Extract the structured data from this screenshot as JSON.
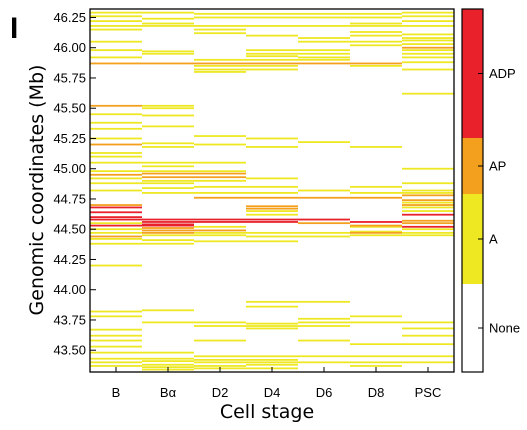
{
  "panel_label": "I",
  "chart_data": {
    "type": "heatmap",
    "title": "",
    "xlabel": "Cell stage",
    "ylabel": "Genomic coordinates (Mb)",
    "categories": [
      "B",
      "Bα",
      "D2",
      "D4",
      "D6",
      "D8",
      "PSC"
    ],
    "ylim": [
      43.32,
      46.32
    ],
    "yticks": [
      43.5,
      43.75,
      44.0,
      44.25,
      44.5,
      44.75,
      45.0,
      45.25,
      45.5,
      45.75,
      46.0,
      46.25
    ],
    "ytick_labels": [
      "43.50",
      "43.75",
      "44.00",
      "44.25",
      "44.50",
      "44.75",
      "45.00",
      "45.25",
      "45.50",
      "45.75",
      "46.00",
      "46.25"
    ],
    "grid": false,
    "legend": {
      "placement": "right colorbar",
      "levels": [
        {
          "label": "None",
          "color": "#ffffff"
        },
        {
          "label": "A",
          "color": "#eee823"
        },
        {
          "label": "AP",
          "color": "#f4a01f"
        },
        {
          "label": "ADP",
          "color": "#e8212b"
        }
      ]
    },
    "colors": {
      "A": "#eee823",
      "AP": "#f4a01f",
      "ADP": "#e8212b"
    },
    "series": [
      {
        "stage": "B",
        "A": [
          46.29,
          46.26,
          46.22,
          46.18,
          46.15,
          46.05,
          45.98,
          45.92,
          45.45,
          45.38,
          45.33,
          45.25,
          45.13,
          45.1,
          45.05,
          44.98,
          44.92,
          44.88,
          44.82,
          44.55,
          44.5,
          44.47,
          44.42,
          44.38,
          44.2,
          43.82,
          43.78,
          43.67,
          43.62,
          43.58,
          43.53,
          43.48,
          43.43,
          43.4,
          43.37
        ],
        "AP": [
          45.87,
          45.52,
          45.2,
          44.95,
          44.7,
          44.44
        ],
        "ADP": [
          44.68,
          44.64,
          44.6,
          44.58,
          44.53
        ]
      },
      {
        "stage": "Bα",
        "A": [
          46.29,
          46.24,
          46.2,
          46.18,
          45.97,
          45.95,
          45.52,
          45.5,
          45.44,
          45.35,
          45.21,
          45.18,
          45.05,
          45.02,
          44.98,
          44.9,
          44.88,
          44.84,
          44.8,
          44.45,
          44.41,
          44.38,
          43.83,
          43.73,
          43.48,
          43.43,
          43.41,
          43.38,
          43.36,
          43.34
        ],
        "AP": [
          45.87,
          44.96,
          44.93,
          44.51,
          44.49,
          44.47
        ],
        "ADP": [
          44.58,
          44.56,
          44.54,
          44.53
        ]
      },
      {
        "stage": "D2",
        "A": [
          46.28,
          46.25,
          46.18,
          46.15,
          46.12,
          45.9,
          45.85,
          45.82,
          45.8,
          45.27,
          45.2,
          45.05,
          44.98,
          44.9,
          44.85,
          44.8,
          44.52,
          44.47,
          44.45,
          44.4,
          43.73,
          43.7,
          43.58,
          43.45,
          43.42,
          43.4,
          43.37,
          43.35
        ],
        "AP": [
          45.87,
          44.96,
          44.93,
          44.76,
          44.49
        ],
        "ADP": [
          44.58,
          44.56
        ]
      },
      {
        "stage": "D4",
        "A": [
          46.28,
          46.25,
          46.18,
          46.1,
          45.98,
          45.95,
          45.93,
          45.9,
          45.85,
          45.82,
          45.25,
          45.18,
          44.92,
          44.85,
          44.8,
          44.65,
          44.62,
          44.47,
          44.44,
          44.4,
          43.9,
          43.86,
          43.72,
          43.7,
          43.68,
          43.45,
          43.42,
          43.4,
          43.38,
          43.35
        ],
        "AP": [
          45.87,
          44.69,
          44.67,
          44.76
        ],
        "ADP": [
          44.58,
          44.56
        ]
      },
      {
        "stage": "D6",
        "A": [
          46.28,
          46.25,
          46.18,
          46.08,
          46.05,
          45.98,
          45.95,
          45.92,
          45.9,
          45.22,
          44.82,
          44.47,
          44.44,
          43.9,
          43.76,
          43.73,
          43.7,
          43.58,
          43.45,
          43.4
        ],
        "AP": [
          45.87,
          44.76,
          44.55
        ],
        "ADP": [
          44.58
        ]
      },
      {
        "stage": "D8",
        "A": [
          46.28,
          46.25,
          46.2,
          46.18,
          46.13,
          46.1,
          46.05,
          46.02,
          45.85,
          45.18,
          44.85,
          44.8,
          44.52,
          44.48,
          44.45,
          43.78,
          43.73,
          43.55,
          43.45,
          43.4,
          43.37
        ],
        "AP": [
          45.87,
          44.76,
          44.53,
          44.47
        ],
        "ADP": [
          44.56
        ]
      },
      {
        "stage": "PSC",
        "A": [
          46.29,
          46.26,
          46.22,
          46.18,
          46.11,
          46.08,
          46.06,
          46.03,
          45.98,
          45.95,
          45.92,
          45.88,
          45.82,
          45.62,
          45.0,
          44.88,
          44.82,
          44.8,
          44.72,
          44.68,
          44.65,
          44.5,
          44.47,
          44.45,
          43.73,
          43.68,
          43.62,
          43.55,
          43.45,
          43.4
        ],
        "AP": [
          46.0,
          44.78,
          44.74,
          44.7,
          44.57,
          44.55
        ],
        "ADP": [
          44.62,
          44.52
        ]
      }
    ]
  }
}
